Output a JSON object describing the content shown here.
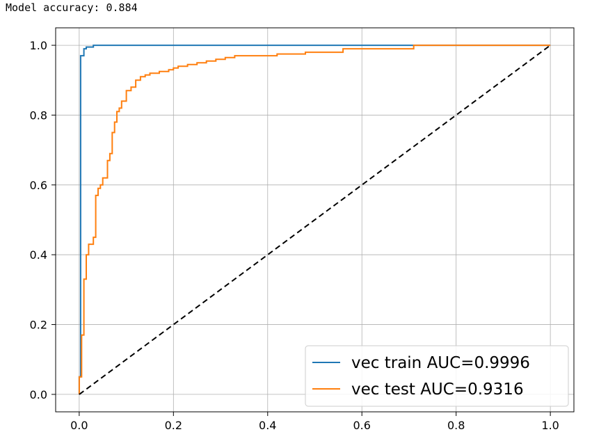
{
  "output": {
    "text": "Model accuracy: 0.884"
  },
  "chart_data": {
    "type": "line",
    "xlim": [
      -0.05,
      1.05
    ],
    "ylim": [
      -0.05,
      1.05
    ],
    "grid": true,
    "legend": "lower-right",
    "xticks": [
      "0.0",
      "0.2",
      "0.4",
      "0.6",
      "0.8",
      "1.0"
    ],
    "yticks": [
      "0.0",
      "0.2",
      "0.4",
      "0.6",
      "0.8",
      "1.0"
    ],
    "series": [
      {
        "name": "vec train AUC=0.9996",
        "color": "#1f77b4",
        "x": [
          0,
          0,
          0.003,
          0.003,
          0.01,
          0.01,
          0.015,
          0.015,
          0.03,
          0.03,
          0.72,
          0.72,
          1.0
        ],
        "y": [
          0,
          0.05,
          0.05,
          0.97,
          0.97,
          0.99,
          0.99,
          0.995,
          0.995,
          1.0,
          1.0,
          1.0,
          1.0
        ]
      },
      {
        "name": "vec test  AUC=0.9316",
        "color": "#ff7f0e",
        "x": [
          0,
          0,
          0.005,
          0.005,
          0.01,
          0.01,
          0.015,
          0.015,
          0.02,
          0.02,
          0.03,
          0.03,
          0.035,
          0.035,
          0.04,
          0.04,
          0.045,
          0.045,
          0.05,
          0.05,
          0.06,
          0.06,
          0.065,
          0.065,
          0.07,
          0.07,
          0.075,
          0.075,
          0.08,
          0.08,
          0.085,
          0.085,
          0.09,
          0.09,
          0.1,
          0.1,
          0.11,
          0.11,
          0.12,
          0.12,
          0.13,
          0.13,
          0.14,
          0.14,
          0.15,
          0.15,
          0.17,
          0.17,
          0.19,
          0.19,
          0.2,
          0.2,
          0.21,
          0.21,
          0.23,
          0.23,
          0.25,
          0.25,
          0.27,
          0.27,
          0.29,
          0.29,
          0.31,
          0.31,
          0.33,
          0.33,
          0.38,
          0.38,
          0.42,
          0.42,
          0.48,
          0.48,
          0.56,
          0.56,
          0.71,
          0.71,
          1.0
        ],
        "y": [
          0,
          0.05,
          0.05,
          0.17,
          0.17,
          0.33,
          0.33,
          0.4,
          0.4,
          0.43,
          0.43,
          0.45,
          0.45,
          0.57,
          0.57,
          0.59,
          0.59,
          0.6,
          0.6,
          0.62,
          0.62,
          0.67,
          0.67,
          0.69,
          0.69,
          0.75,
          0.75,
          0.78,
          0.78,
          0.81,
          0.81,
          0.82,
          0.82,
          0.84,
          0.84,
          0.87,
          0.87,
          0.88,
          0.88,
          0.9,
          0.9,
          0.91,
          0.91,
          0.915,
          0.915,
          0.92,
          0.92,
          0.925,
          0.925,
          0.93,
          0.93,
          0.935,
          0.935,
          0.94,
          0.94,
          0.945,
          0.945,
          0.95,
          0.95,
          0.955,
          0.955,
          0.96,
          0.96,
          0.965,
          0.965,
          0.97,
          0.97,
          0.97,
          0.97,
          0.975,
          0.975,
          0.98,
          0.98,
          0.99,
          0.99,
          1.0,
          1.0
        ]
      },
      {
        "name": "",
        "color": "#000000",
        "dashed": true,
        "x": [
          0,
          1
        ],
        "y": [
          0,
          1
        ]
      }
    ]
  }
}
